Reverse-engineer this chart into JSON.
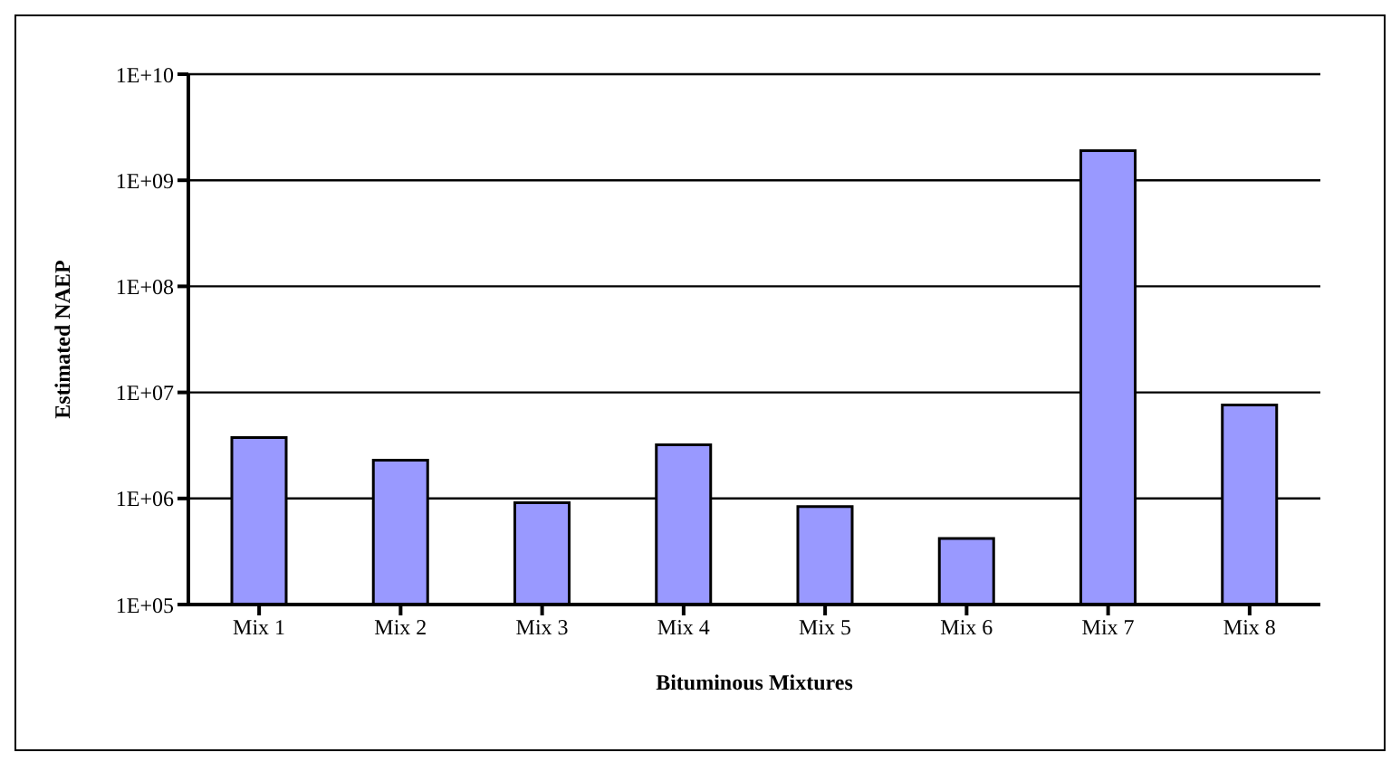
{
  "chart_data": {
    "type": "bar",
    "xlabel": "Bituminous Mixtures",
    "ylabel": "Estimated NAEP",
    "categories": [
      "Mix 1",
      "Mix 2",
      "Mix 3",
      "Mix 4",
      "Mix 5",
      "Mix 6",
      "Mix 7",
      "Mix 8"
    ],
    "values": [
      3750000,
      2300000,
      910000,
      3200000,
      840000,
      420000,
      1900000000,
      7600000
    ],
    "color": "#9999ff",
    "log": true,
    "ylim": [
      100000,
      10000000000
    ],
    "yticks": [
      {
        "value": 100000,
        "label": "1E+05"
      },
      {
        "value": 1000000,
        "label": "1E+06"
      },
      {
        "value": 10000000,
        "label": "1E+07"
      },
      {
        "value": 100000000,
        "label": "1E+08"
      },
      {
        "value": 1000000000,
        "label": "1E+09"
      },
      {
        "value": 10000000000,
        "label": "1E+10"
      }
    ],
    "grid": "y",
    "legend": false
  }
}
